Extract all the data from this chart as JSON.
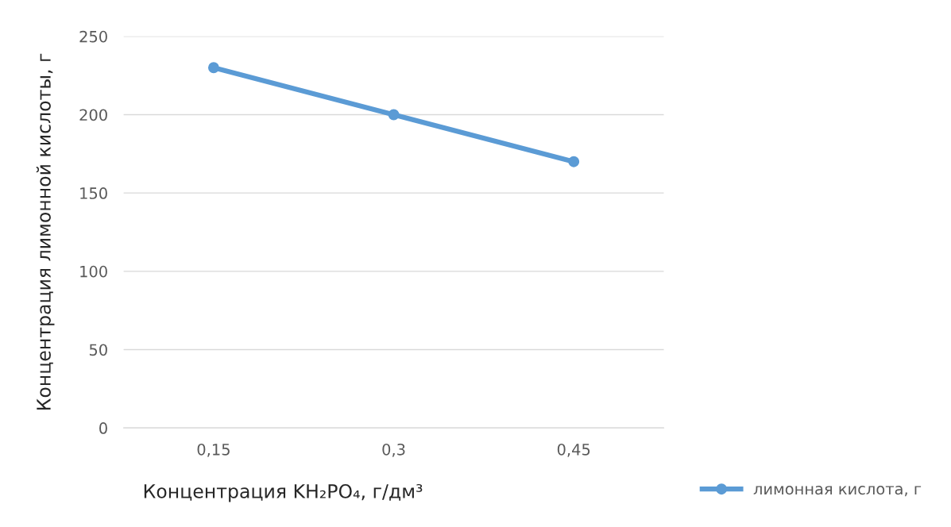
{
  "chart_data": {
    "type": "line",
    "xlabel": "Концентрация KH₂PO₄, г/дм³",
    "ylabel": "Концентрация лимонной кислоты, г",
    "categories": [
      "0,15",
      "0,3",
      "0,45"
    ],
    "series": [
      {
        "name": "лимонная кислота, г",
        "color": "#5b9bd5",
        "values": [
          230,
          200,
          170
        ]
      }
    ],
    "ylim": [
      0,
      250
    ],
    "yticks": [
      0,
      50,
      100,
      150,
      200,
      250
    ],
    "grid": "y",
    "legend": "bottom right",
    "marker": "circle",
    "line_style": "solid"
  }
}
